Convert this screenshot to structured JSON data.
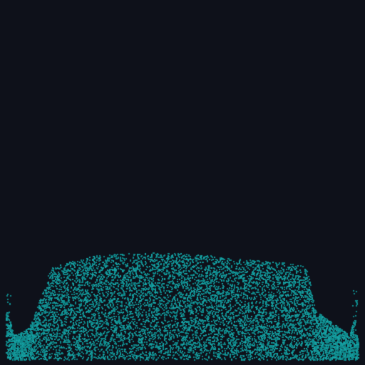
{
  "simulation": {
    "background_color": "#0e111a",
    "particle_color": "#0f8a8c",
    "particle_highlight_color": "#16a3a5",
    "particle_count_estimate": 9500,
    "description_visible_text": ""
  }
}
